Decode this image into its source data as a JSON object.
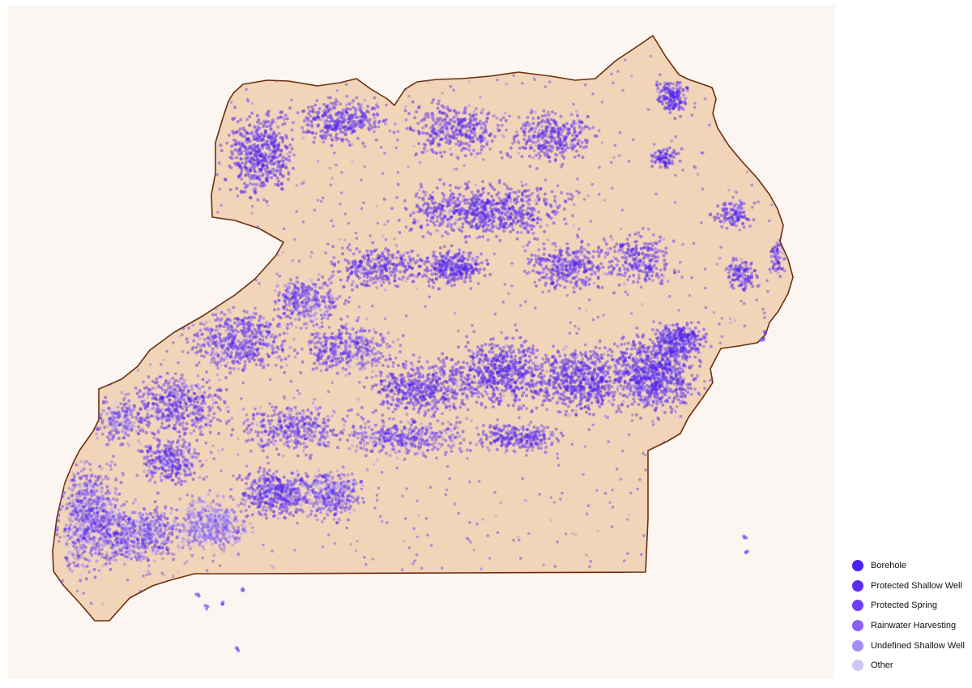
{
  "map": {
    "background_color": "#fbf6f1",
    "land_fill": "#f2d4b8",
    "border_color": "#6b2f0e"
  },
  "legend": {
    "items": [
      {
        "label": "Borehole",
        "color": "#4b22f0"
      },
      {
        "label": "Protected Shallow Well",
        "color": "#5a2cf2"
      },
      {
        "label": "Protected Spring",
        "color": "#6d3ff4"
      },
      {
        "label": "Rainwater Harvesting",
        "color": "#8a63f3"
      },
      {
        "label": "Undefined Shallow Well",
        "color": "#a58ef2"
      },
      {
        "label": "Other",
        "color": "#cfc6f6"
      }
    ]
  }
}
